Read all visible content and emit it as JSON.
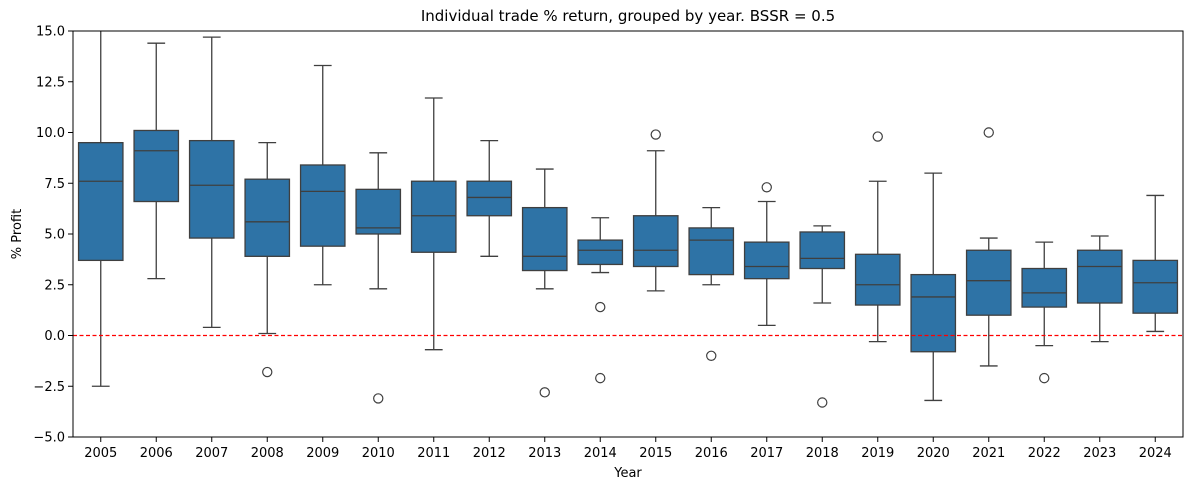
{
  "chart_data": {
    "type": "box",
    "title": "Individual trade % return, grouped by year. BSSR = 0.5",
    "xlabel": "Year",
    "ylabel": "% Profit",
    "ylim": [
      -5.0,
      15.0
    ],
    "yticks": [
      -5.0,
      -2.5,
      0.0,
      2.5,
      5.0,
      7.5,
      10.0,
      12.5,
      15.0
    ],
    "ytick_labels": [
      "−5.0",
      "−2.5",
      "0.0",
      "2.5",
      "5.0",
      "7.5",
      "10.0",
      "12.5",
      "15.0"
    ],
    "reference_line": {
      "y": 0.0,
      "color": "#ff0000",
      "style": "dashed"
    },
    "box_color": "#2e73a6",
    "categories": [
      "2005",
      "2006",
      "2007",
      "2008",
      "2009",
      "2010",
      "2011",
      "2012",
      "2013",
      "2014",
      "2015",
      "2016",
      "2017",
      "2018",
      "2019",
      "2020",
      "2021",
      "2022",
      "2023",
      "2024"
    ],
    "boxes": [
      {
        "year": "2005",
        "whisker_low": -2.5,
        "q1": 3.7,
        "median": 7.6,
        "q3": 9.5,
        "whisker_high": 16.0,
        "outliers": []
      },
      {
        "year": "2006",
        "whisker_low": 2.8,
        "q1": 6.6,
        "median": 9.1,
        "q3": 10.1,
        "whisker_high": 14.4,
        "outliers": []
      },
      {
        "year": "2007",
        "whisker_low": 0.4,
        "q1": 4.8,
        "median": 7.4,
        "q3": 9.6,
        "whisker_high": 14.7,
        "outliers": []
      },
      {
        "year": "2008",
        "whisker_low": 0.1,
        "q1": 3.9,
        "median": 5.6,
        "q3": 7.7,
        "whisker_high": 9.5,
        "outliers": [
          -1.8
        ]
      },
      {
        "year": "2009",
        "whisker_low": 2.5,
        "q1": 4.4,
        "median": 7.1,
        "q3": 8.4,
        "whisker_high": 13.3,
        "outliers": []
      },
      {
        "year": "2010",
        "whisker_low": 2.3,
        "q1": 5.0,
        "median": 5.3,
        "q3": 7.2,
        "whisker_high": 9.0,
        "outliers": [
          -3.1
        ]
      },
      {
        "year": "2011",
        "whisker_low": -0.7,
        "q1": 4.1,
        "median": 5.9,
        "q3": 7.6,
        "whisker_high": 11.7,
        "outliers": []
      },
      {
        "year": "2012",
        "whisker_low": 3.9,
        "q1": 5.9,
        "median": 6.8,
        "q3": 7.6,
        "whisker_high": 9.6,
        "outliers": []
      },
      {
        "year": "2013",
        "whisker_low": 2.3,
        "q1": 3.2,
        "median": 3.9,
        "q3": 6.3,
        "whisker_high": 8.2,
        "outliers": [
          -2.8
        ]
      },
      {
        "year": "2014",
        "whisker_low": 3.1,
        "q1": 3.5,
        "median": 4.2,
        "q3": 4.7,
        "whisker_high": 5.8,
        "outliers": [
          1.4,
          -2.1
        ]
      },
      {
        "year": "2015",
        "whisker_low": 2.2,
        "q1": 3.4,
        "median": 4.2,
        "q3": 5.9,
        "whisker_high": 9.1,
        "outliers": [
          9.9
        ]
      },
      {
        "year": "2016",
        "whisker_low": 2.5,
        "q1": 3.0,
        "median": 4.7,
        "q3": 5.3,
        "whisker_high": 6.3,
        "outliers": [
          -1.0
        ]
      },
      {
        "year": "2017",
        "whisker_low": 0.5,
        "q1": 2.8,
        "median": 3.4,
        "q3": 4.6,
        "whisker_high": 6.6,
        "outliers": [
          7.3
        ]
      },
      {
        "year": "2018",
        "whisker_low": 1.6,
        "q1": 3.3,
        "median": 3.8,
        "q3": 5.1,
        "whisker_high": 5.4,
        "outliers": [
          -3.3
        ]
      },
      {
        "year": "2019",
        "whisker_low": -0.3,
        "q1": 1.5,
        "median": 2.5,
        "q3": 4.0,
        "whisker_high": 7.6,
        "outliers": [
          9.8
        ]
      },
      {
        "year": "2020",
        "whisker_low": -3.2,
        "q1": -0.8,
        "median": 1.9,
        "q3": 3.0,
        "whisker_high": 8.0,
        "outliers": []
      },
      {
        "year": "2021",
        "whisker_low": -1.5,
        "q1": 1.0,
        "median": 2.7,
        "q3": 4.2,
        "whisker_high": 4.8,
        "outliers": [
          10.0
        ]
      },
      {
        "year": "2022",
        "whisker_low": -0.5,
        "q1": 1.4,
        "median": 2.1,
        "q3": 3.3,
        "whisker_high": 4.6,
        "outliers": [
          -2.1
        ]
      },
      {
        "year": "2023",
        "whisker_low": -0.3,
        "q1": 1.6,
        "median": 3.4,
        "q3": 4.2,
        "whisker_high": 4.9,
        "outliers": []
      },
      {
        "year": "2024",
        "whisker_low": 0.2,
        "q1": 1.1,
        "median": 2.6,
        "q3": 3.7,
        "whisker_high": 6.9,
        "outliers": []
      }
    ]
  }
}
